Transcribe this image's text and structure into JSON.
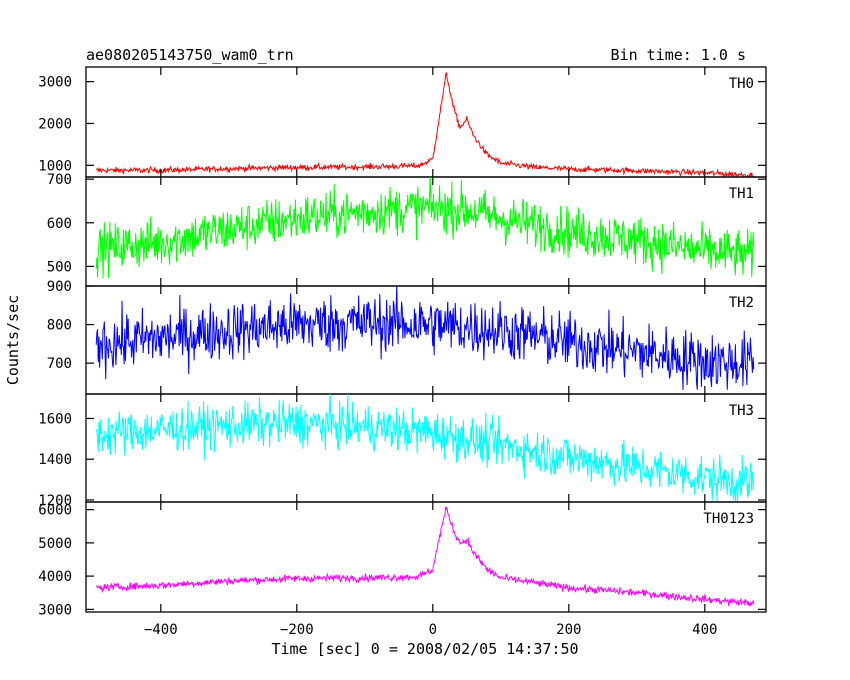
{
  "header": {
    "title": "ae080205143750_wam0_trn",
    "bin_time": "Bin time: 1.0 s"
  },
  "chart_data": {
    "type": "line",
    "xlabel": "Time [sec] 0 = 2008/02/05 14:37:50",
    "ylabel": "Counts/sec",
    "xlim": [
      -510,
      490
    ],
    "x_ticks": [
      -400,
      -200,
      0,
      200,
      400
    ],
    "x_range_data": [
      -495,
      472
    ],
    "bin_time_s": 1.0,
    "panels": [
      {
        "name": "TH0",
        "color": "#ff0000",
        "ylim": [
          720,
          3350
        ],
        "y_ticks": [
          1000,
          2000,
          3000
        ],
        "noise": 35,
        "profile": [
          [
            -495,
            880
          ],
          [
            -400,
            880
          ],
          [
            -300,
            920
          ],
          [
            -200,
            950
          ],
          [
            -100,
            960
          ],
          [
            -20,
            990
          ],
          [
            0,
            1150
          ],
          [
            10,
            2200
          ],
          [
            20,
            3200
          ],
          [
            30,
            2400
          ],
          [
            40,
            1900
          ],
          [
            50,
            2100
          ],
          [
            60,
            1700
          ],
          [
            80,
            1250
          ],
          [
            100,
            1050
          ],
          [
            150,
            950
          ],
          [
            200,
            910
          ],
          [
            300,
            870
          ],
          [
            400,
            820
          ],
          [
            472,
            760
          ]
        ]
      },
      {
        "name": "TH1",
        "color": "#00ff00",
        "ylim": [
          455,
          705
        ],
        "y_ticks": [
          500,
          600,
          700
        ],
        "noise": 28,
        "profile": [
          [
            -495,
            540
          ],
          [
            -400,
            555
          ],
          [
            -300,
            585
          ],
          [
            -200,
            610
          ],
          [
            -100,
            625
          ],
          [
            0,
            635
          ],
          [
            50,
            630
          ],
          [
            100,
            610
          ],
          [
            200,
            580
          ],
          [
            300,
            560
          ],
          [
            400,
            535
          ],
          [
            472,
            525
          ]
        ]
      },
      {
        "name": "TH2",
        "color": "#0000ff",
        "ylim": [
          620,
          900
        ],
        "y_ticks": [
          700,
          800,
          900
        ],
        "noise": 38,
        "profile": [
          [
            -495,
            750
          ],
          [
            -400,
            765
          ],
          [
            -300,
            785
          ],
          [
            -200,
            800
          ],
          [
            -100,
            805
          ],
          [
            0,
            800
          ],
          [
            100,
            785
          ],
          [
            200,
            755
          ],
          [
            300,
            730
          ],
          [
            400,
            705
          ],
          [
            472,
            700
          ]
        ]
      },
      {
        "name": "TH3",
        "color": "#00ffff",
        "ylim": [
          1190,
          1720
        ],
        "y_ticks": [
          1200,
          1400,
          1600
        ],
        "noise": 55,
        "profile": [
          [
            -495,
            1520
          ],
          [
            -400,
            1545
          ],
          [
            -300,
            1565
          ],
          [
            -200,
            1575
          ],
          [
            -100,
            1560
          ],
          [
            0,
            1530
          ],
          [
            100,
            1470
          ],
          [
            200,
            1410
          ],
          [
            300,
            1360
          ],
          [
            400,
            1310
          ],
          [
            472,
            1280
          ]
        ]
      },
      {
        "name": "TH0123",
        "color": "#ff00ff",
        "ylim": [
          2920,
          6230
        ],
        "y_ticks": [
          3000,
          4000,
          5000,
          6000
        ],
        "noise": 55,
        "profile": [
          [
            -495,
            3650
          ],
          [
            -400,
            3720
          ],
          [
            -300,
            3850
          ],
          [
            -200,
            3930
          ],
          [
            -100,
            3950
          ],
          [
            -20,
            3980
          ],
          [
            0,
            4200
          ],
          [
            10,
            5200
          ],
          [
            20,
            6050
          ],
          [
            30,
            5400
          ],
          [
            40,
            5000
          ],
          [
            50,
            5100
          ],
          [
            60,
            4700
          ],
          [
            80,
            4200
          ],
          [
            100,
            3950
          ],
          [
            150,
            3800
          ],
          [
            200,
            3650
          ],
          [
            300,
            3500
          ],
          [
            400,
            3300
          ],
          [
            472,
            3180
          ]
        ]
      }
    ]
  }
}
